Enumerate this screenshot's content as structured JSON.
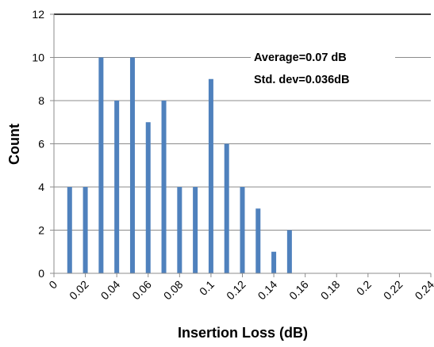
{
  "chart_data": {
    "type": "bar",
    "title": "",
    "xlabel": "Insertion Loss (dB)",
    "ylabel": "Count",
    "ylim": [
      0,
      12
    ],
    "xlim": [
      0,
      0.24
    ],
    "yticks": [
      "0",
      "2",
      "4",
      "6",
      "8",
      "10",
      "12"
    ],
    "xticks": [
      "0",
      "0.02",
      "0.04",
      "0.06",
      "0.08",
      "0.1",
      "0.12",
      "0.14",
      "0.16",
      "0.18",
      "0.2",
      "0.22",
      "0.24"
    ],
    "grid": true,
    "bar_color": "#4f81bd",
    "x": [
      0.01,
      0.02,
      0.03,
      0.04,
      0.05,
      0.06,
      0.07,
      0.08,
      0.09,
      0.1,
      0.11,
      0.12,
      0.13,
      0.14,
      0.15
    ],
    "values": [
      4,
      4,
      10,
      8,
      10,
      7,
      8,
      4,
      4,
      9,
      6,
      4,
      3,
      1,
      2
    ],
    "annotations": [
      "Average=0.07 dB",
      "Std. dev=0.036dB"
    ]
  }
}
